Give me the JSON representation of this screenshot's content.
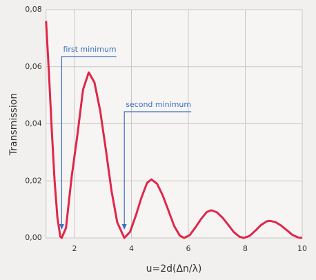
{
  "chart_data": {
    "type": "line",
    "x_label": "u=2d(Δn/λ)",
    "y_label": "Transmission",
    "x": [
      1.0,
      1.1,
      1.2,
      1.3,
      1.4,
      1.5,
      1.55,
      1.7,
      1.9,
      2.1,
      2.3,
      2.5,
      2.7,
      2.9,
      3.1,
      3.3,
      3.5,
      3.75,
      3.95,
      4.15,
      4.35,
      4.55,
      4.7,
      4.9,
      5.1,
      5.3,
      5.5,
      5.7,
      5.85,
      6.05,
      6.25,
      6.45,
      6.65,
      6.8,
      7.0,
      7.2,
      7.4,
      7.6,
      7.8,
      7.95,
      8.15,
      8.35,
      8.55,
      8.75,
      8.85,
      9.05,
      9.25,
      9.45,
      9.65,
      9.85,
      9.95,
      10.0
    ],
    "series": [
      {
        "color": "#e0264a",
        "values": [
          0.076,
          0.058,
          0.038,
          0.02,
          0.007,
          0.0005,
          0,
          0.0035,
          0.0215,
          0.036,
          0.052,
          0.058,
          0.0545,
          0.0447,
          0.031,
          0.0165,
          0.0055,
          0,
          0.0021,
          0.0077,
          0.0141,
          0.0193,
          0.0205,
          0.019,
          0.0149,
          0.0096,
          0.0042,
          0.0008,
          0,
          0.001,
          0.0037,
          0.0067,
          0.0091,
          0.0097,
          0.009,
          0.0071,
          0.0046,
          0.002,
          0.0004,
          0,
          0.0007,
          0.0025,
          0.0045,
          0.0058,
          0.006,
          0.0056,
          0.0044,
          0.0028,
          0.0011,
          0.0002,
          0,
          0.0001
        ]
      }
    ],
    "xlim": [
      1,
      10
    ],
    "xticks": [
      2,
      4,
      6,
      8,
      10
    ],
    "ylim": [
      0,
      0.08
    ],
    "yticks": [
      {
        "value": 0,
        "label": "0,00"
      },
      {
        "value": 0.02,
        "label": "0,02"
      },
      {
        "value": 0.04,
        "label": "0,04"
      },
      {
        "value": 0.06,
        "label": "0,06"
      },
      {
        "value": 0.08,
        "label": "0,08"
      }
    ],
    "grid": true,
    "annotations": [
      {
        "text": "first minimum",
        "x": 1.55
      },
      {
        "text": "second minimum",
        "x": 3.75
      }
    ],
    "annotation_color": "#3a6fc4"
  }
}
